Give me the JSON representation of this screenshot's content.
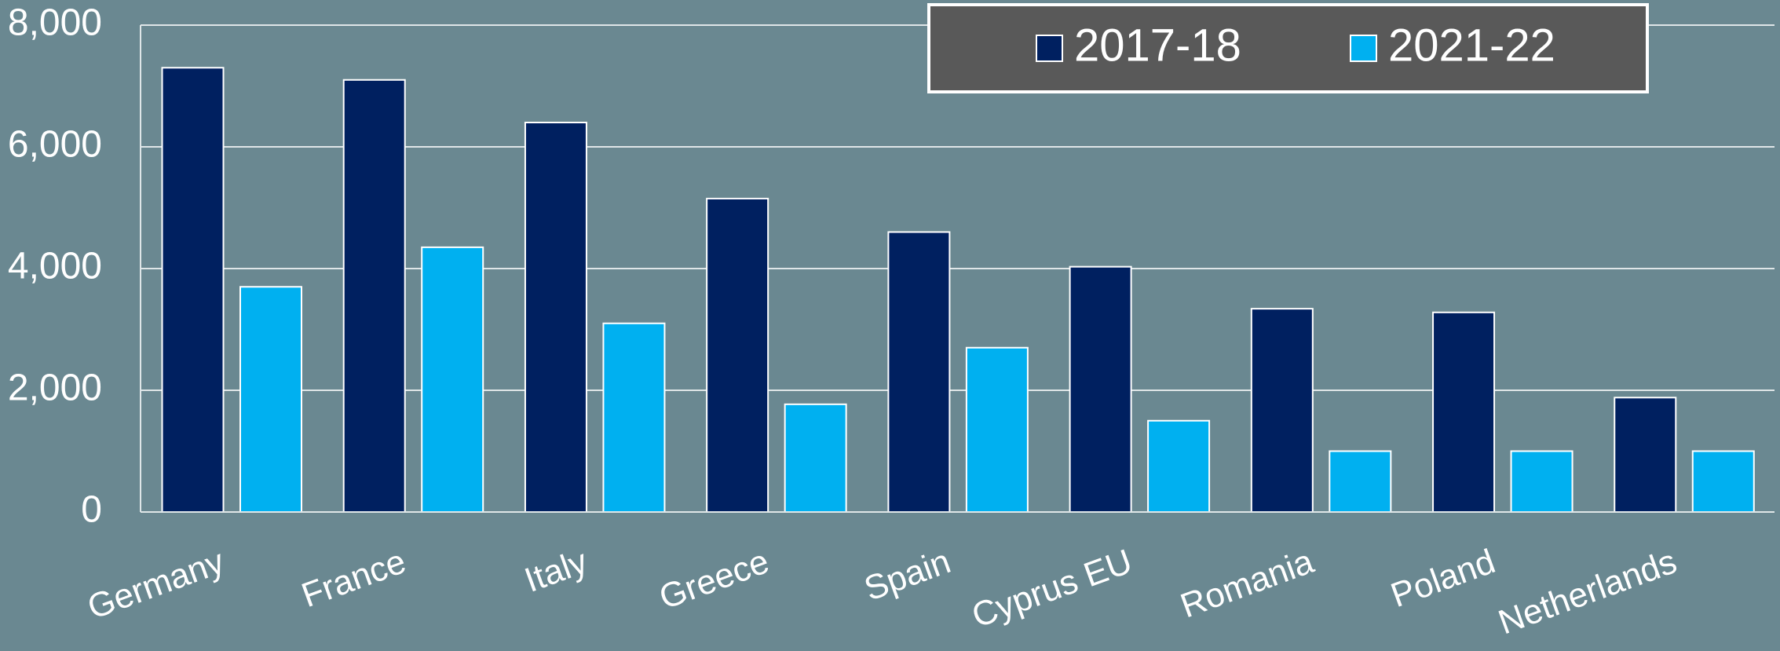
{
  "chart_data": {
    "type": "bar",
    "categories": [
      "Germany",
      "France",
      "Italy",
      "Greece",
      "Spain",
      "Cyprus EU",
      "Romania",
      "Poland",
      "Netherlands"
    ],
    "series": [
      {
        "name": "2017-18",
        "color": "#002060",
        "values": [
          7300,
          7100,
          6400,
          5150,
          4600,
          4030,
          3340,
          3280,
          1880
        ]
      },
      {
        "name": "2021-22",
        "color": "#00b0f0",
        "values": [
          3700,
          4350,
          3100,
          1770,
          2700,
          1500,
          1000,
          1000,
          1000
        ]
      }
    ],
    "ylim": [
      0,
      8000
    ],
    "yticks": [
      0,
      {
        "value": 2000,
        "label": "2,000"
      },
      {
        "value": 4000,
        "label": "4,000"
      },
      {
        "value": 6000,
        "label": "6,000"
      },
      {
        "value": 8000,
        "label": "8,000"
      }
    ],
    "grid": true,
    "legend": "top-right"
  }
}
